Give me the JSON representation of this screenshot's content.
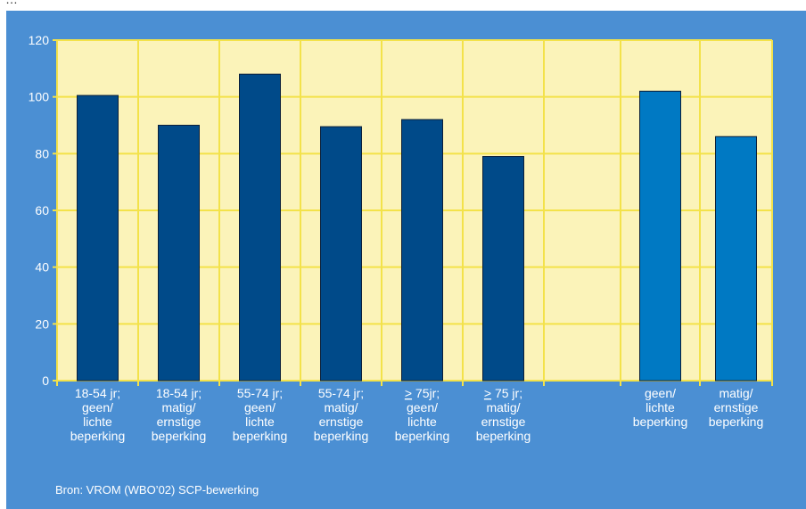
{
  "header": {
    "caption": "…"
  },
  "source": "Bron: VROM (WBO’02) SCP-bewerking",
  "colors": {
    "background": "#4b8fd3",
    "plot_area": "#fbf3b9",
    "grid": "#f3e24a",
    "bar_dark": "#004a89",
    "bar_light": "#0079c3",
    "text": "#ffffff"
  },
  "chart_data": {
    "type": "bar",
    "title": "",
    "xlabel": "",
    "ylabel": "",
    "ylim": [
      0,
      120
    ],
    "yticks": [
      0,
      20,
      40,
      60,
      80,
      100,
      120
    ],
    "grid": true,
    "categories": [
      [
        "18-54 jr;",
        "geen/",
        "lichte",
        "beperking"
      ],
      [
        "18-54 jr;",
        "matig/",
        "ernstige",
        "beperking"
      ],
      [
        "55-74 jr;",
        "geen/",
        "lichte",
        "beperking"
      ],
      [
        "55-74 jr;",
        "matig/",
        "ernstige",
        "beperking"
      ],
      [
        "> 75jr;",
        "geen/",
        "lichte",
        "beperking"
      ],
      [
        "> 75 jr;",
        "matig/",
        "ernstige",
        "beperking"
      ],
      [],
      [
        "geen/",
        "lichte",
        "beperking"
      ],
      [
        "matig/",
        "ernstige",
        "beperking"
      ]
    ],
    "values": [
      100.5,
      90,
      108,
      89.5,
      92,
      79,
      null,
      102,
      86
    ],
    "bar_color_keys": [
      "bar_dark",
      "bar_dark",
      "bar_dark",
      "bar_dark",
      "bar_dark",
      "bar_dark",
      null,
      "bar_light",
      "bar_light"
    ]
  }
}
